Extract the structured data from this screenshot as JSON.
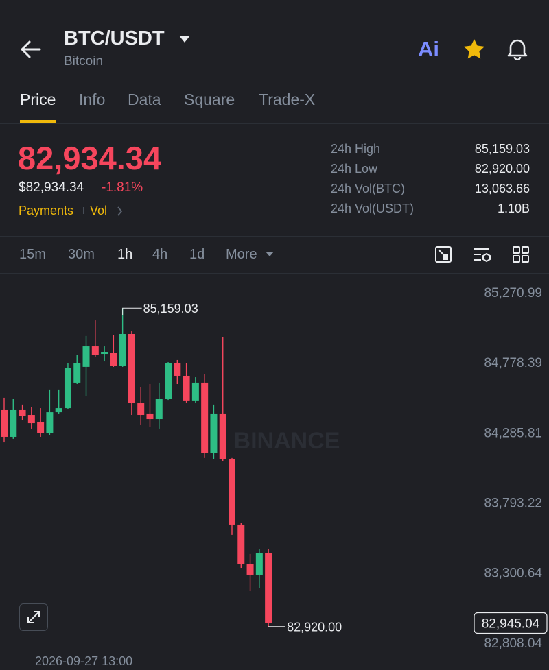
{
  "header": {
    "symbol": "BTC/USDT",
    "name": "Bitcoin",
    "ai": "Ai"
  },
  "tabs": {
    "items": [
      "Price",
      "Info",
      "Data",
      "Square",
      "Trade-X"
    ],
    "active": 0
  },
  "price": {
    "last": "82,934.34",
    "fiat": "$82,934.34",
    "change": "-1.81%",
    "tags": [
      "Payments",
      "Vol"
    ]
  },
  "stats": [
    {
      "label": "24h High",
      "value": "85,159.03"
    },
    {
      "label": "24h Low",
      "value": "82,920.00"
    },
    {
      "label": "24h Vol(BTC)",
      "value": "13,063.66"
    },
    {
      "label": "24h Vol(USDT)",
      "value": "1.10B"
    }
  ],
  "intervals": {
    "items": [
      "15m",
      "30m",
      "1h",
      "4h",
      "1d",
      "More"
    ],
    "active": 2
  },
  "chart_data": {
    "type": "candlestick",
    "watermark": "BINANCE",
    "up_color": "#2ebd85",
    "down_color": "#f6465d",
    "ylim": [
      82745,
      85406
    ],
    "yticks": [
      {
        "value": 85270.99,
        "label": "85,270.99"
      },
      {
        "value": 84778.39,
        "label": "84,778.39"
      },
      {
        "value": 84285.81,
        "label": "84,285.81"
      },
      {
        "value": 83793.22,
        "label": "83,793.22"
      },
      {
        "value": 83300.64,
        "label": "83,300.64"
      },
      {
        "value": 82808.04,
        "label": "82,808.04"
      }
    ],
    "candles": [
      {
        "open": 84442,
        "high": 84529,
        "low": 84215,
        "close": 84254
      },
      {
        "open": 84254,
        "high": 84519,
        "low": 84240,
        "close": 84442
      },
      {
        "open": 84442,
        "high": 84481,
        "low": 84374,
        "close": 84399
      },
      {
        "open": 84408,
        "high": 84466,
        "low": 84312,
        "close": 84350
      },
      {
        "open": 84360,
        "high": 84456,
        "low": 84254,
        "close": 84278
      },
      {
        "open": 84278,
        "high": 84587,
        "low": 84268,
        "close": 84427
      },
      {
        "open": 84427,
        "high": 84587,
        "low": 84418,
        "close": 84456
      },
      {
        "open": 84456,
        "high": 84770,
        "low": 84447,
        "close": 84736
      },
      {
        "open": 84635,
        "high": 84832,
        "low": 84625,
        "close": 84770
      },
      {
        "open": 84746,
        "high": 84963,
        "low": 84543,
        "close": 84890
      },
      {
        "open": 84890,
        "high": 85073,
        "low": 84818,
        "close": 84832
      },
      {
        "open": 84837,
        "high": 84890,
        "low": 84784,
        "close": 84847
      },
      {
        "open": 84842,
        "high": 84972,
        "low": 84746,
        "close": 84755
      },
      {
        "open": 84755,
        "high": 85159.03,
        "low": 84746,
        "close": 84977
      },
      {
        "open": 84977,
        "high": 84996,
        "low": 84408,
        "close": 84490
      },
      {
        "open": 84490,
        "high": 84601,
        "low": 84336,
        "close": 84408
      },
      {
        "open": 84418,
        "high": 84625,
        "low": 84326,
        "close": 84379
      },
      {
        "open": 84379,
        "high": 84635,
        "low": 84312,
        "close": 84519
      },
      {
        "open": 84519,
        "high": 84779,
        "low": 84509,
        "close": 84770
      },
      {
        "open": 84770,
        "high": 84794,
        "low": 84625,
        "close": 84683
      },
      {
        "open": 84683,
        "high": 84770,
        "low": 84495,
        "close": 84505
      },
      {
        "open": 84505,
        "high": 84673,
        "low": 84495,
        "close": 84635
      },
      {
        "open": 84635,
        "high": 84697,
        "low": 84105,
        "close": 84143
      },
      {
        "open": 84143,
        "high": 84481,
        "low": 84095,
        "close": 84418
      },
      {
        "open": 84418,
        "high": 84953,
        "low": 84085,
        "close": 84095
      },
      {
        "open": 84095,
        "high": 84105,
        "low": 83565,
        "close": 83637
      },
      {
        "open": 83637,
        "high": 83651,
        "low": 83333,
        "close": 83362
      },
      {
        "open": 83362,
        "high": 83430,
        "low": 83169,
        "close": 83285
      },
      {
        "open": 83285,
        "high": 83468,
        "low": 83189,
        "close": 83439
      },
      {
        "open": 83439,
        "high": 83468,
        "low": 82920.0,
        "close": 82945.04
      }
    ],
    "high_marker": {
      "value": 85159.03,
      "label": "85,159.03"
    },
    "low_marker": {
      "value": 82920.0,
      "label": "82,920.00"
    },
    "current_price": {
      "value": 82945.04,
      "label": "82,945.04"
    },
    "time_label": "2026-09-27 13:00"
  }
}
